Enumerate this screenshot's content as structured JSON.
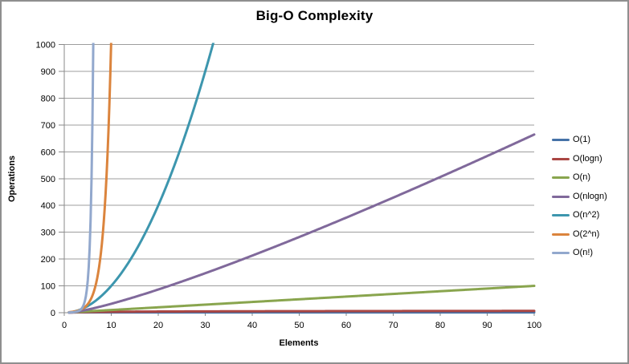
{
  "window": {
    "background": "#FFFFFF",
    "border_color": "#8F8F8F"
  },
  "chart_data": {
    "type": "line",
    "title": "Big-O Complexity",
    "xlabel": "Elements",
    "ylabel": "Operations",
    "xlim": [
      0,
      100
    ],
    "ylim": [
      0,
      1000
    ],
    "x_ticks": [
      0,
      10,
      20,
      30,
      40,
      50,
      60,
      70,
      80,
      90,
      100
    ],
    "y_ticks": [
      0,
      100,
      200,
      300,
      400,
      500,
      600,
      700,
      800,
      900,
      1000
    ],
    "grid": "horizontal-major-only",
    "gridline_color": "#9D9D9D",
    "axis_color": "#8A8A8A",
    "legend_position": "right",
    "series": [
      {
        "name": "O(1)",
        "color": "#4572A7",
        "formula": "1",
        "sample_points": {
          "x": [
            1,
            25,
            50,
            75,
            100
          ],
          "y": [
            1,
            1,
            1,
            1,
            1
          ]
        }
      },
      {
        "name": "O(logn)",
        "color": "#AA4643",
        "formula": "log2(n)",
        "sample_points": {
          "x": [
            1,
            25,
            50,
            75,
            100
          ],
          "y": [
            0,
            4.64,
            5.64,
            6.23,
            6.64
          ]
        }
      },
      {
        "name": "O(n)",
        "color": "#89A54E",
        "formula": "n",
        "sample_points": {
          "x": [
            1,
            25,
            50,
            75,
            100
          ],
          "y": [
            1,
            25,
            50,
            75,
            100
          ]
        }
      },
      {
        "name": "O(nlogn)",
        "color": "#80699B",
        "formula": "n*log2(n)",
        "sample_points": {
          "x": [
            1,
            25,
            50,
            75,
            100
          ],
          "y": [
            0,
            116,
            282,
            467,
            664
          ]
        }
      },
      {
        "name": "O(n^2)",
        "color": "#3D96AE",
        "formula": "n^2",
        "sample_points": {
          "x": [
            1,
            10,
            20,
            31.6
          ],
          "y": [
            1,
            100,
            400,
            1000
          ],
          "note": "exits top of plot near x=31.6"
        }
      },
      {
        "name": "O(2^n)",
        "color": "#DB843D",
        "formula": "2^n",
        "sample_points": {
          "x": [
            1,
            5,
            9,
            10
          ],
          "y": [
            2,
            32,
            512,
            1024
          ],
          "note": "exits top of plot near x=10"
        }
      },
      {
        "name": "O(n!)",
        "color": "#92A8CD",
        "formula": "n!",
        "sample_points": {
          "x": [
            1,
            3,
            5,
            6,
            7
          ],
          "y": [
            1,
            6,
            120,
            720,
            5040
          ],
          "note": "exits top of plot near x=6.2"
        }
      }
    ]
  }
}
